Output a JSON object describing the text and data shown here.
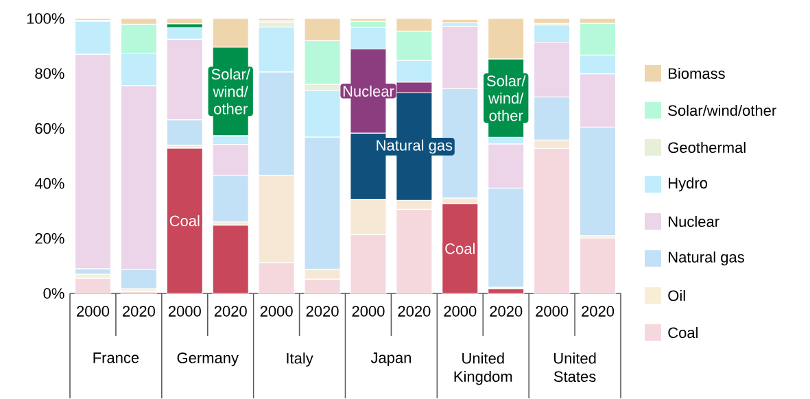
{
  "chart_data": {
    "type": "bar",
    "stacked": true,
    "categories": [
      "2000",
      "2020",
      "2000",
      "2020",
      "2000",
      "2020",
      "2000",
      "2020",
      "2000",
      "2020",
      "2000",
      "2020"
    ],
    "series": [
      {
        "name": "Coal",
        "color": "#f5d8de",
        "colors": [
          "#f5d8de",
          "#f5d8de",
          "#c8475a",
          "#c8475a",
          "#f5d8de",
          "#f5d8de",
          "#f5d8de",
          "#f5d8de",
          "#c8475a",
          "#c8475a",
          "#f5d8de",
          "#f5d8de"
        ],
        "values": [
          5.5,
          0.7,
          52.9,
          24.9,
          11.2,
          5.2,
          21.4,
          30.6,
          32.7,
          1.7,
          52.8,
          20.2
        ],
        "value_labels": [
          null,
          null,
          "Coal",
          null,
          null,
          null,
          null,
          null,
          "Coal",
          null,
          null,
          null
        ]
      },
      {
        "name": "Oil",
        "color": "#f8eed6",
        "colors": [
          "#f8f0d6",
          "#f8f0d6",
          "#f7e8d5",
          "#f7e8d5",
          "#f7e8d5",
          "#f7e8d5",
          "#f7e8d5",
          "#f7e8d5",
          "#f7e8d5",
          "#f7e8d5",
          "#f7e8d5",
          "#f7e8d5"
        ],
        "values": [
          1.5,
          1.0,
          1.0,
          1.1,
          31.8,
          3.6,
          12.8,
          3.2,
          2.0,
          0.6,
          3.0,
          0.8
        ]
      },
      {
        "name": "Natural gas",
        "color": "#c3e1f6",
        "colors": [
          "#c3e1f6",
          "#c3e1f6",
          "#c3e1f6",
          "#c3e1f6",
          "#c3e1f6",
          "#c3e1f6",
          "#0f517c",
          "#0f517c",
          "#c3e1f6",
          "#c3e1f6",
          "#c3e1f6",
          "#c3e1f6"
        ],
        "values": [
          2.0,
          6.9,
          9.3,
          16.8,
          37.6,
          48.1,
          24.1,
          39.2,
          39.8,
          36.0,
          15.7,
          39.5
        ],
        "value_labels": [
          null,
          null,
          null,
          null,
          null,
          null,
          null,
          "Natural gas",
          null,
          null,
          null,
          null
        ]
      },
      {
        "name": "Nuclear",
        "color": "#ecd5e8",
        "colors": [
          "#ecd5e8",
          "#ecd5e8",
          "#ecd5e8",
          "#ecd5e8",
          "#ecd5e8",
          "#ecd5e8",
          "#8c3d80",
          "#8c3d80",
          "#ecd5e8",
          "#ecd5e8",
          "#ecd5e8",
          "#ecd5e8"
        ],
        "values": [
          78,
          67,
          29.3,
          11.4,
          0,
          0,
          30.6,
          3.9,
          22.7,
          16.1,
          19.9,
          19.4
        ],
        "value_labels": [
          null,
          null,
          null,
          null,
          null,
          null,
          "Nuclear",
          null,
          null,
          null,
          null,
          null
        ]
      },
      {
        "name": "Hydro",
        "color": "#c0ecfc",
        "colors": [
          "#c0ecfc",
          "#c0ecfc",
          "#c0ecfc",
          "#c0ecfc",
          "#c0ecfc",
          "#c0ecfc",
          "#c0ecfc",
          "#c0ecfc",
          "#c0ecfc",
          "#c0ecfc",
          "#c0ecfc",
          "#c0ecfc"
        ],
        "values": [
          12,
          11.8,
          4.2,
          3.2,
          16.3,
          17.0,
          7.9,
          7.8,
          1.3,
          2.4,
          6.3,
          6.8
        ]
      },
      {
        "name": "Geothermal",
        "color": "#e8efd9",
        "colors": [
          "#e8efd9",
          "#e8efd9",
          "#e8efd9",
          "#e8efd9",
          "#e8efd9",
          "#e8efd9",
          "#e8efd9",
          "#e8efd9",
          "#e8efd9",
          "#e8efd9",
          "#e8efd9",
          "#e8efd9"
        ],
        "values": [
          0,
          0,
          0,
          0,
          1.8,
          2.2,
          0,
          0,
          0,
          0,
          0.5,
          0
        ]
      },
      {
        "name": "Solar/wind/other",
        "color": "#b6f9da",
        "colors": [
          "#b6f9da",
          "#b6f9da",
          "#00904c",
          "#00904c",
          "#b6f9da",
          "#b6f9da",
          "#b6f9da",
          "#b6f9da",
          "#00904c",
          "#00904c",
          "#b6f9da",
          "#b6f9da"
        ],
        "values": [
          0.3,
          10.5,
          1.4,
          32.2,
          0.5,
          15.9,
          2.2,
          10.7,
          null,
          28.5,
          0,
          11.6
        ],
        "value_labels": [
          null,
          null,
          null,
          "Solar/ wind/ other",
          null,
          null,
          null,
          null,
          null,
          "Solar/ wind/ other",
          null,
          null
        ]
      },
      {
        "name": "Biomass",
        "color": "#efd5ab",
        "colors": [
          "#efd5ab",
          "#efd5ab",
          "#efd5ab",
          "#efd5ab",
          "#efd5ab",
          "#efd5ab",
          "#efd5ab",
          "#efd5ab",
          "#efd5ab",
          "#efd5ab",
          "#efd5ab",
          "#efd5ab"
        ],
        "values": [
          0.7,
          2.1,
          1.9,
          10.4,
          0.8,
          8.0,
          1.0,
          4.6,
          1.2,
          14.7,
          1.8,
          1.7
        ]
      }
    ],
    "ylim": [
      0,
      100
    ],
    "yticks": [
      {
        "value": 0,
        "label": "0%"
      },
      {
        "value": 20,
        "label": "20%"
      },
      {
        "value": 40,
        "label": "40%"
      },
      {
        "value": 60,
        "label": "60%"
      },
      {
        "value": 80,
        "label": "80%"
      },
      {
        "value": 100,
        "label": "100%"
      }
    ],
    "annotations": [
      "France",
      "Germany",
      "Italy",
      "Japan",
      "United Kingdom",
      "United States"
    ],
    "legend": "right",
    "grid": false
  }
}
